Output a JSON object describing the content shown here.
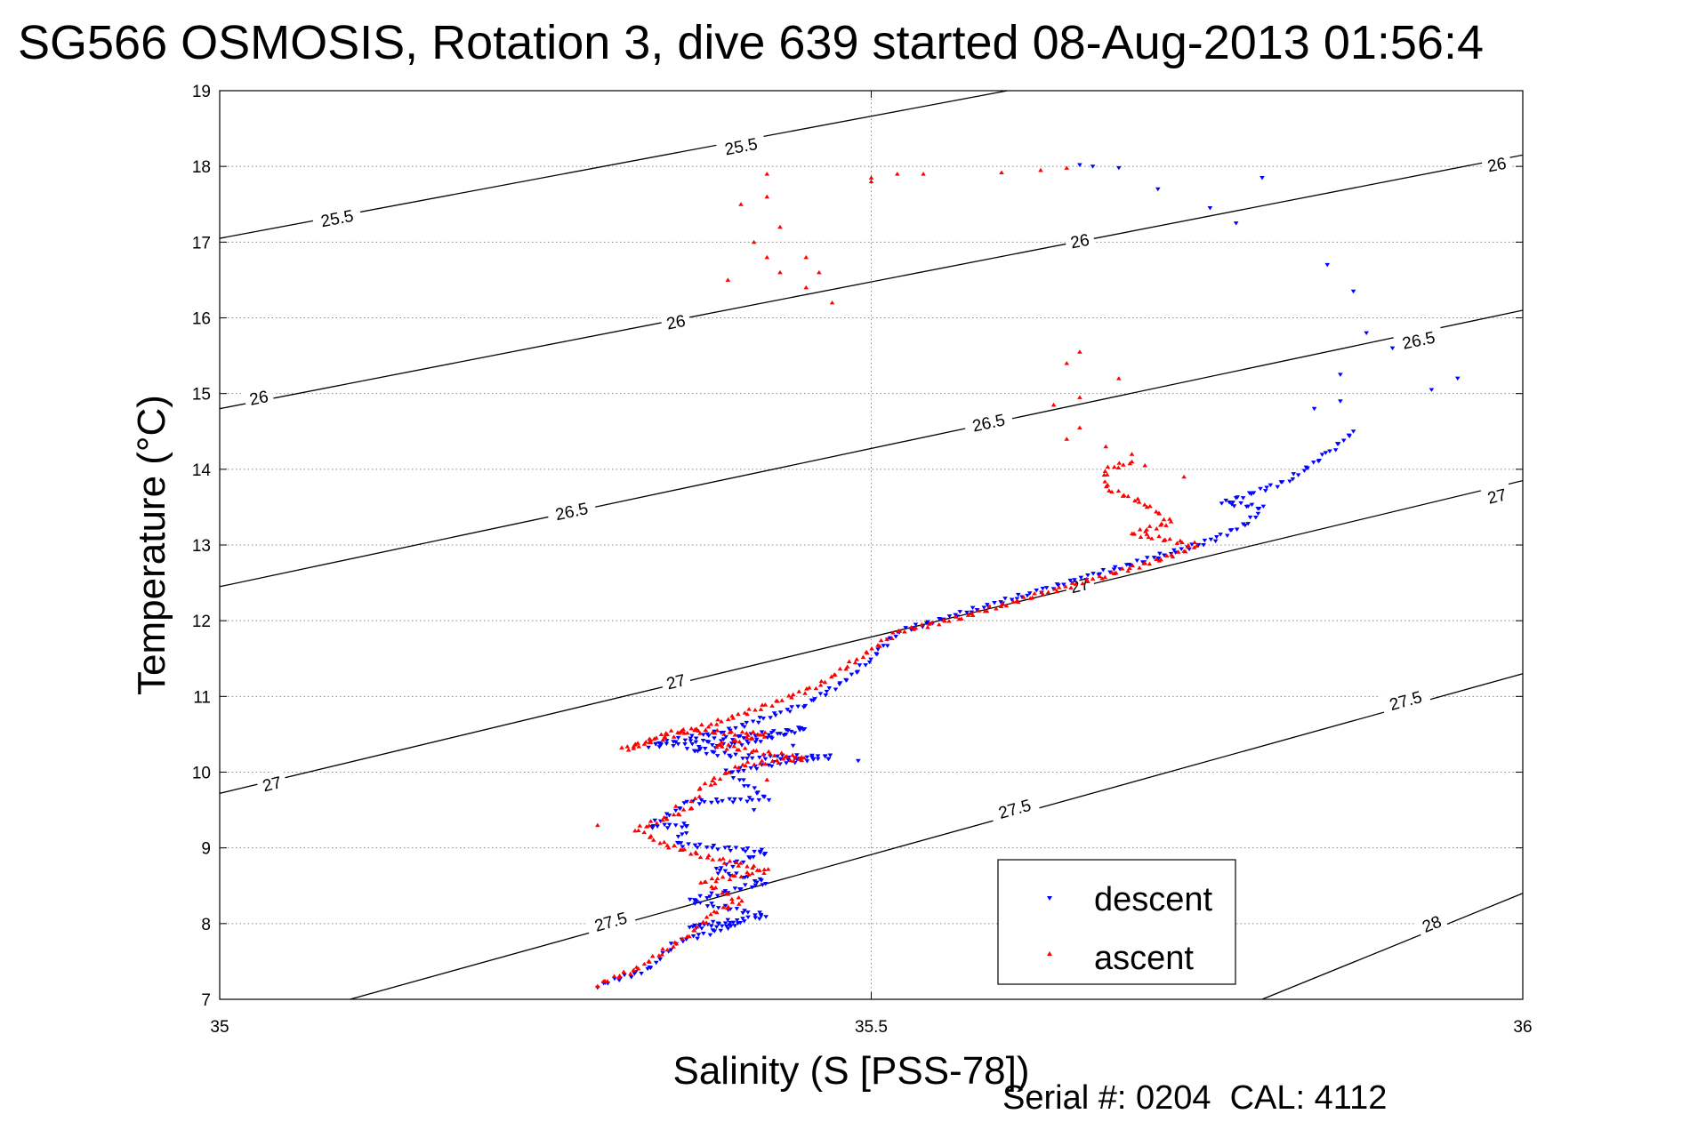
{
  "chart_data": {
    "type": "scatter",
    "title": "SG566 OSMOSIS, Rotation 3, dive 639 started 08-Aug-2013 01:56:4",
    "xlabel": "Salinity (S [PSS-78])",
    "ylabel": "Temperature (°C)",
    "xlim": [
      35,
      36
    ],
    "ylim": [
      7,
      19
    ],
    "x_ticks": [
      35,
      35.5,
      36
    ],
    "x_tick_labels": [
      "35",
      "35.5",
      "36"
    ],
    "y_ticks": [
      7,
      8,
      9,
      10,
      11,
      12,
      13,
      14,
      15,
      16,
      17,
      18,
      19
    ],
    "y_tick_labels": [
      "7",
      "8",
      "9",
      "10",
      "11",
      "12",
      "13",
      "14",
      "15",
      "16",
      "17",
      "18",
      "19"
    ],
    "grid": "dotted at x=35.5 and each y tick",
    "legend": {
      "placement": "bottom-right",
      "entries": [
        "descent",
        "ascent"
      ]
    },
    "footer": "Serial #: 0204  CAL: 4112",
    "colors": {
      "descent": "#0000ff",
      "ascent": "#ff0000",
      "contour": "#000000",
      "grid": "#888888"
    },
    "contours": [
      {
        "label": "25.5",
        "points": [
          [
            35.0,
            17.05
          ],
          [
            35.62,
            19.05
          ]
        ],
        "labels": [
          [
            35.09,
            17.32
          ],
          [
            35.4,
            18.27
          ]
        ]
      },
      {
        "label": "26",
        "points": [
          [
            35.0,
            14.8
          ],
          [
            36.0,
            18.15
          ]
        ],
        "labels": [
          [
            35.03,
            14.95
          ],
          [
            35.35,
            15.95
          ],
          [
            35.66,
            17.02
          ],
          [
            35.98,
            18.03
          ]
        ]
      },
      {
        "label": "26.5",
        "points": [
          [
            35.0,
            12.45
          ],
          [
            36.0,
            16.1
          ]
        ],
        "labels": [
          [
            35.27,
            13.45
          ],
          [
            35.59,
            14.62
          ],
          [
            35.92,
            15.71
          ]
        ]
      },
      {
        "label": "27",
        "points": [
          [
            35.0,
            9.72
          ],
          [
            36.0,
            13.85
          ]
        ],
        "labels": [
          [
            35.04,
            9.85
          ],
          [
            35.35,
            11.2
          ],
          [
            35.66,
            12.47
          ],
          [
            35.98,
            13.65
          ]
        ]
      },
      {
        "label": "27.5",
        "points": [
          [
            35.1,
            7.0
          ],
          [
            36.0,
            11.3
          ]
        ],
        "labels": [
          [
            35.3,
            8.03
          ],
          [
            35.61,
            9.52
          ],
          [
            35.91,
            10.95
          ]
        ]
      },
      {
        "label": "28",
        "points": [
          [
            35.8,
            7.0
          ],
          [
            36.0,
            8.4
          ]
        ],
        "labels": [
          [
            35.93,
            8.0
          ]
        ]
      }
    ],
    "series": [
      {
        "name": "descent",
        "marker": "triangle-down",
        "path": [
          [
            35.29,
            7.18
          ],
          [
            35.33,
            7.4
          ],
          [
            35.35,
            7.75
          ],
          [
            35.4,
            8.0
          ],
          [
            35.36,
            7.95
          ],
          [
            35.42,
            8.1
          ],
          [
            35.36,
            8.3
          ],
          [
            35.42,
            8.55
          ],
          [
            35.38,
            8.7
          ],
          [
            35.42,
            8.95
          ],
          [
            35.35,
            9.05
          ],
          [
            35.36,
            9.3
          ],
          [
            35.33,
            9.28
          ],
          [
            35.36,
            9.6
          ],
          [
            35.42,
            9.65
          ],
          [
            35.39,
            10.0
          ],
          [
            35.44,
            10.15
          ],
          [
            35.47,
            10.2
          ],
          [
            35.4,
            10.2
          ],
          [
            35.36,
            10.3
          ],
          [
            35.41,
            10.4
          ],
          [
            35.45,
            10.58
          ],
          [
            35.37,
            10.4
          ],
          [
            35.33,
            10.35
          ],
          [
            35.39,
            10.55
          ],
          [
            35.45,
            10.9
          ],
          [
            35.48,
            11.2
          ],
          [
            35.5,
            11.5
          ],
          [
            35.52,
            11.85
          ],
          [
            35.56,
            12.05
          ],
          [
            35.62,
            12.35
          ],
          [
            35.67,
            12.6
          ],
          [
            35.71,
            12.8
          ],
          [
            35.76,
            13.05
          ],
          [
            35.79,
            13.3
          ],
          [
            35.8,
            13.5
          ],
          [
            35.77,
            13.55
          ],
          [
            35.82,
            13.85
          ],
          [
            35.85,
            14.2
          ],
          [
            35.87,
            14.5
          ]
        ],
        "scatter": [
          [
            35.66,
            18.02
          ],
          [
            35.67,
            18.0
          ],
          [
            35.69,
            17.98
          ],
          [
            35.72,
            17.7
          ],
          [
            35.76,
            17.45
          ],
          [
            35.78,
            17.25
          ],
          [
            35.8,
            17.85
          ],
          [
            35.85,
            16.7
          ],
          [
            35.87,
            16.35
          ],
          [
            35.88,
            15.8
          ],
          [
            35.9,
            15.6
          ],
          [
            35.93,
            15.05
          ],
          [
            35.95,
            15.2
          ],
          [
            35.84,
            14.8
          ],
          [
            35.86,
            14.9
          ],
          [
            35.86,
            15.25
          ],
          [
            35.41,
            9.5
          ],
          [
            35.44,
            10.35
          ],
          [
            35.49,
            10.15
          ]
        ]
      },
      {
        "name": "ascent",
        "marker": "triangle-up",
        "path": [
          [
            35.29,
            7.2
          ],
          [
            35.32,
            7.4
          ],
          [
            35.36,
            7.85
          ],
          [
            35.38,
            8.15
          ],
          [
            35.4,
            8.3
          ],
          [
            35.37,
            8.55
          ],
          [
            35.42,
            8.7
          ],
          [
            35.37,
            8.9
          ],
          [
            35.34,
            9.05
          ],
          [
            35.32,
            9.25
          ],
          [
            35.36,
            9.5
          ],
          [
            35.37,
            9.8
          ],
          [
            35.4,
            10.1
          ],
          [
            35.45,
            10.18
          ],
          [
            35.38,
            10.35
          ],
          [
            35.42,
            10.5
          ],
          [
            35.35,
            10.55
          ],
          [
            35.31,
            10.3
          ],
          [
            35.38,
            10.65
          ],
          [
            35.42,
            10.88
          ],
          [
            35.46,
            11.15
          ],
          [
            35.49,
            11.5
          ],
          [
            35.52,
            11.85
          ],
          [
            35.57,
            12.05
          ],
          [
            35.63,
            12.35
          ],
          [
            35.68,
            12.6
          ],
          [
            35.73,
            12.85
          ],
          [
            35.75,
            13.0
          ],
          [
            35.7,
            13.15
          ],
          [
            35.73,
            13.3
          ],
          [
            35.71,
            13.55
          ],
          [
            35.68,
            13.75
          ],
          [
            35.68,
            14.0
          ],
          [
            35.7,
            14.1
          ]
        ],
        "scatter": [
          [
            35.65,
            17.98
          ],
          [
            35.63,
            17.95
          ],
          [
            35.6,
            17.92
          ],
          [
            35.54,
            17.9
          ],
          [
            35.5,
            17.85
          ],
          [
            35.42,
            17.9
          ],
          [
            35.42,
            17.6
          ],
          [
            35.4,
            17.5
          ],
          [
            35.43,
            17.2
          ],
          [
            35.41,
            17.0
          ],
          [
            35.42,
            16.8
          ],
          [
            35.43,
            16.6
          ],
          [
            35.39,
            16.5
          ],
          [
            35.45,
            16.4
          ],
          [
            35.47,
            16.2
          ],
          [
            35.46,
            16.6
          ],
          [
            35.5,
            17.8
          ],
          [
            35.52,
            17.9
          ],
          [
            35.45,
            16.8
          ],
          [
            35.66,
            15.55
          ],
          [
            35.65,
            15.4
          ],
          [
            35.69,
            15.2
          ],
          [
            35.66,
            14.95
          ],
          [
            35.64,
            14.85
          ],
          [
            35.66,
            14.55
          ],
          [
            35.65,
            14.4
          ],
          [
            35.68,
            14.3
          ],
          [
            35.7,
            14.2
          ],
          [
            35.71,
            14.05
          ],
          [
            35.74,
            13.9
          ],
          [
            35.29,
            9.3
          ],
          [
            35.35,
            9.55
          ],
          [
            35.38,
            9.85
          ],
          [
            35.42,
            9.9
          ]
        ]
      }
    ]
  }
}
